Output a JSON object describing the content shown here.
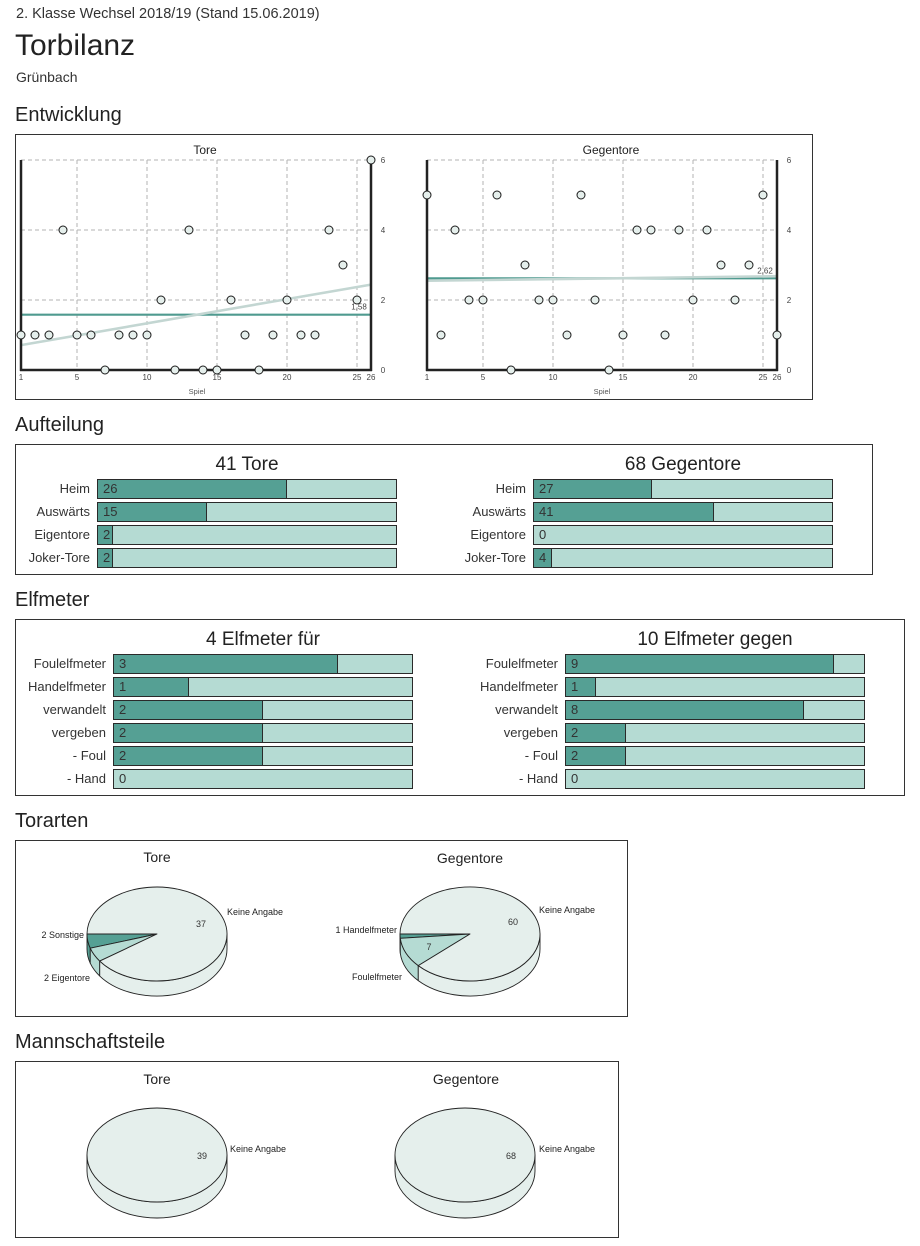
{
  "header": {
    "league": "2. Klasse Wechsel 2018/19 (Stand 15.06.2019)",
    "title": "Torbilanz",
    "team": "Grünbach"
  },
  "sections": {
    "entwicklung": "Entwicklung",
    "aufteilung": "Aufteilung",
    "elfmeter": "Elfmeter",
    "torarten": "Torarten",
    "mannschaftsteile": "Mannschaftsteile"
  },
  "colors": {
    "primary": "#55a094",
    "secondary": "#b5dbd3",
    "neutral": "#e5efec",
    "average_line": "#4f9a8f",
    "trend_line": "#c3d6d2",
    "axis": "#222222",
    "grid": "#b3b3b3",
    "outline": "#222222"
  },
  "chart_data": [
    {
      "type": "scatter",
      "title": "Tore",
      "xlabel": "Spiel",
      "ylabel": "",
      "x": [
        1,
        2,
        3,
        4,
        5,
        6,
        7,
        8,
        9,
        10,
        11,
        12,
        13,
        14,
        15,
        16,
        17,
        18,
        19,
        20,
        21,
        22,
        23,
        24,
        25,
        26
      ],
      "y": [
        1,
        1,
        1,
        4,
        1,
        1,
        0,
        1,
        1,
        1,
        2,
        0,
        4,
        0,
        0,
        2,
        1,
        0,
        1,
        2,
        1,
        1,
        4,
        3,
        2,
        6
      ],
      "xlim": [
        1,
        26
      ],
      "ylim": [
        0,
        6
      ],
      "xticks": [
        1,
        5,
        10,
        15,
        20,
        25,
        26
      ],
      "yticks": [
        0,
        2,
        4,
        6
      ],
      "yaxis_position": "right",
      "grid": true,
      "average": {
        "value": 1.58,
        "label": "1,58"
      },
      "trend": {
        "from": 0.71,
        "to": 2.44
      }
    },
    {
      "type": "scatter",
      "title": "Gegentore",
      "xlabel": "Spiel",
      "ylabel": "",
      "x": [
        1,
        2,
        3,
        4,
        5,
        6,
        7,
        8,
        9,
        10,
        11,
        12,
        13,
        14,
        15,
        16,
        17,
        18,
        19,
        20,
        21,
        22,
        23,
        24,
        25,
        26
      ],
      "y": [
        5,
        1,
        4,
        2,
        2,
        5,
        0,
        3,
        2,
        2,
        1,
        5,
        2,
        0,
        1,
        4,
        4,
        1,
        4,
        2,
        4,
        3,
        2,
        3,
        5,
        1
      ],
      "xlim": [
        1,
        26
      ],
      "ylim": [
        0,
        6
      ],
      "xticks": [
        1,
        5,
        10,
        15,
        20,
        25,
        26
      ],
      "yticks": [
        0,
        2,
        4,
        6
      ],
      "yaxis_position": "right",
      "grid": true,
      "average": {
        "value": 2.62,
        "label": "2,62"
      },
      "trend": {
        "from": 2.55,
        "to": 2.68
      }
    },
    {
      "type": "bar",
      "orientation": "horizontal",
      "title": "41 Tore",
      "total": 41,
      "categories": [
        "Heim",
        "Auswärts",
        "Eigentore",
        "Joker-Tore"
      ],
      "values": [
        26,
        15,
        2,
        2
      ]
    },
    {
      "type": "bar",
      "orientation": "horizontal",
      "title": "68 Gegentore",
      "total": 68,
      "categories": [
        "Heim",
        "Auswärts",
        "Eigentore",
        "Joker-Tore"
      ],
      "values": [
        27,
        41,
        0,
        4
      ]
    },
    {
      "type": "bar",
      "orientation": "horizontal",
      "title": "4 Elfmeter für",
      "total": 4,
      "categories": [
        "Foulelfmeter",
        "Handelfmeter",
        "verwandelt",
        "vergeben",
        "- Foul",
        "- Hand"
      ],
      "values": [
        3,
        1,
        2,
        2,
        2,
        0
      ]
    },
    {
      "type": "bar",
      "orientation": "horizontal",
      "title": "10 Elfmeter gegen",
      "total": 10,
      "categories": [
        "Foulelfmeter",
        "Handelfmeter",
        "verwandelt",
        "vergeben",
        "- Foul",
        "- Hand"
      ],
      "values": [
        9,
        1,
        8,
        2,
        2,
        0
      ]
    },
    {
      "type": "pie",
      "title": "Tore",
      "slices": [
        {
          "name": "Sonstige",
          "value": 2,
          "label": "2 Sonstige",
          "value_label": "",
          "color": "#55a094"
        },
        {
          "name": "Eigentore",
          "value": 2,
          "label": "2 Eigentore",
          "value_label": "",
          "color": "#b5dbd3"
        },
        {
          "name": "Keine Angabe",
          "value": 37,
          "label": "Keine Angabe",
          "value_label": "37",
          "color": "#e5efec"
        }
      ]
    },
    {
      "type": "pie",
      "title": "Gegentore",
      "slices": [
        {
          "name": "Handelfmeter",
          "value": 1,
          "label": "1 Handelfmeter",
          "value_label": "",
          "color": "#55a094"
        },
        {
          "name": "Foulelfmeter",
          "value": 7,
          "label": "Foulelfmeter",
          "value_label": "7",
          "color": "#b5dbd3"
        },
        {
          "name": "Keine Angabe",
          "value": 60,
          "label": "Keine Angabe",
          "value_label": "60",
          "color": "#e5efec"
        }
      ]
    },
    {
      "type": "pie",
      "title": "Tore",
      "slices": [
        {
          "name": "Keine Angabe",
          "value": 39,
          "label": "Keine Angabe",
          "value_label": "39",
          "color": "#e5efec"
        }
      ]
    },
    {
      "type": "pie",
      "title": "Gegentore",
      "slices": [
        {
          "name": "Keine Angabe",
          "value": 68,
          "label": "Keine Angabe",
          "value_label": "68",
          "color": "#e5efec"
        }
      ]
    }
  ]
}
